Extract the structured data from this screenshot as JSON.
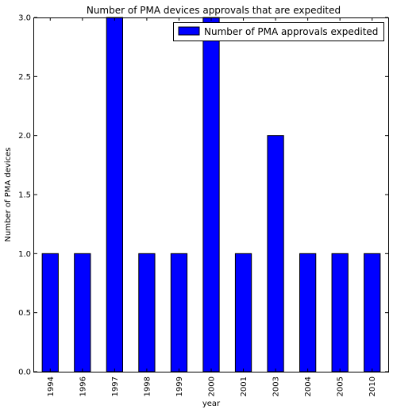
{
  "chart_data": {
    "type": "bar",
    "title": "Number of PMA devices approvals that are expedited",
    "xlabel": "year",
    "ylabel": "Number of PMA devices",
    "categories": [
      "1994",
      "1996",
      "1997",
      "1998",
      "1999",
      "2000",
      "2001",
      "2003",
      "2004",
      "2005",
      "2010"
    ],
    "series": [
      {
        "name": "Number of PMA approvals expedited",
        "values": [
          1,
          1,
          3,
          1,
          1,
          3,
          1,
          2,
          1,
          1,
          1
        ],
        "color": "#0000ff"
      }
    ],
    "ylim": [
      0,
      3
    ],
    "yticks": [
      "0.0",
      "0.5",
      "1.0",
      "1.5",
      "2.0",
      "2.5",
      "3.0"
    ],
    "grid": false,
    "legend_position": "top-right"
  }
}
